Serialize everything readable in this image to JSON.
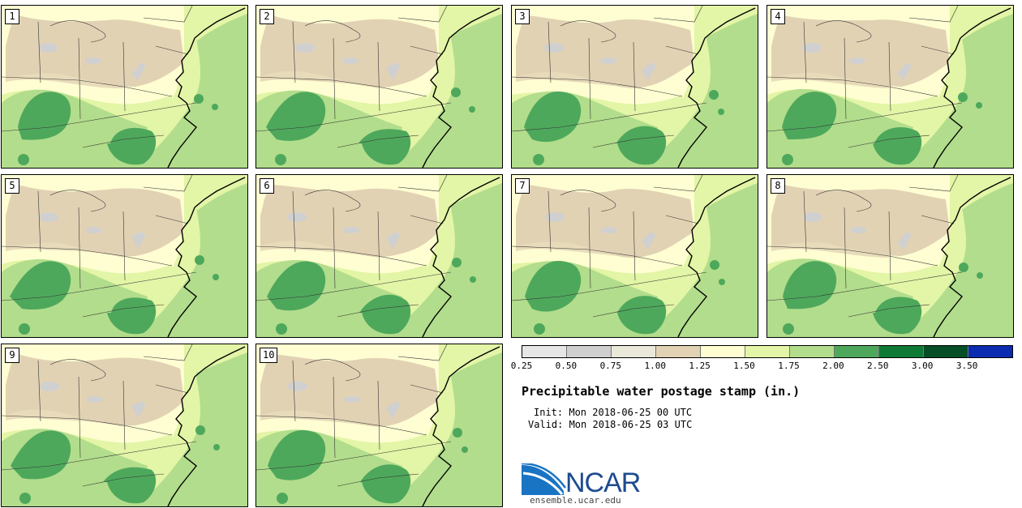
{
  "panels": [
    {
      "label": "1"
    },
    {
      "label": "2"
    },
    {
      "label": "3"
    },
    {
      "label": "4"
    },
    {
      "label": "5"
    },
    {
      "label": "6"
    },
    {
      "label": "7"
    },
    {
      "label": "8"
    },
    {
      "label": "9"
    },
    {
      "label": "10"
    }
  ],
  "legend": {
    "ticks": [
      "0.25",
      "0.50",
      "0.75",
      "1.00",
      "1.25",
      "1.50",
      "1.75",
      "2.00",
      "2.50",
      "3.00",
      "3.50"
    ],
    "colors": [
      "#e6e6e6",
      "#cfcfcf",
      "#eae8d8",
      "#e2d2b4",
      "#fefed2",
      "#e3f5a6",
      "#b2dd8c",
      "#4ea85c",
      "#0f7a35",
      "#064f26",
      "#0b2cb0"
    ]
  },
  "title": "Precipitable water postage stamp (in.)",
  "init": "Init: Mon 2018-06-25 00 UTC",
  "valid": "Valid: Mon 2018-06-25 03 UTC",
  "logo": {
    "name": "NCAR",
    "url": "ensemble.ucar.edu"
  },
  "map_colors": {
    "tan": "#e2d2b4",
    "grey": "#d0d0d0",
    "cream": "#fefed2",
    "light_green": "#e3f5a6",
    "mid_green": "#b2dd8c",
    "dark_green": "#4ea85c"
  }
}
